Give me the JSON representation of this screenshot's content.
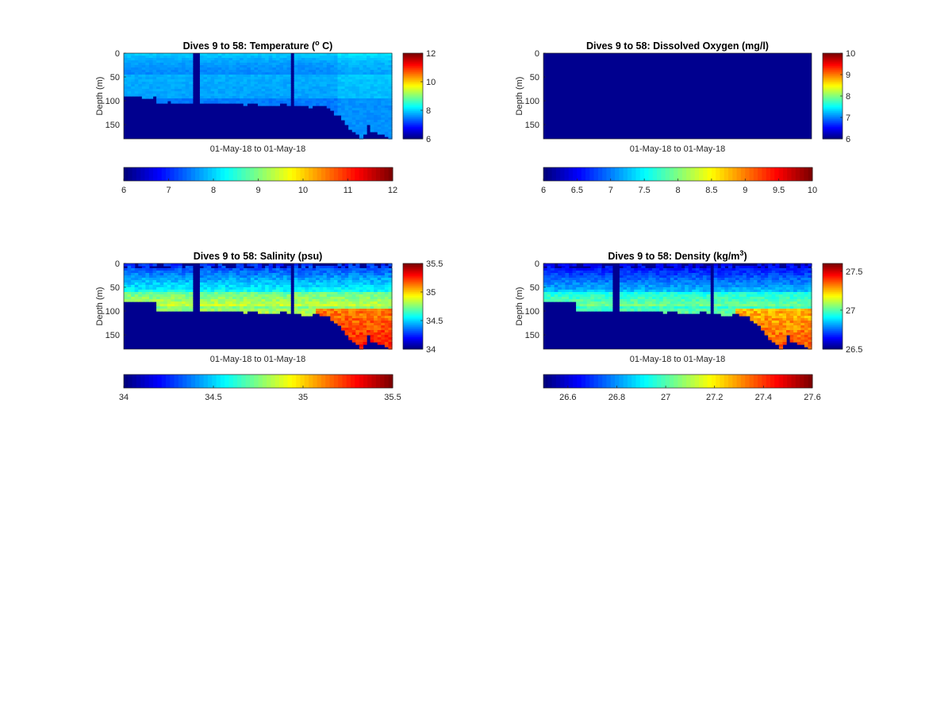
{
  "chart_data": [
    {
      "type": "heatmap",
      "id": "temperature",
      "title": "Dives 9 to 58: Temperature (",
      "title_sup": "o",
      "title_end": " C)",
      "xlabel": "01-May-18 to 01-May-18",
      "ylabel": "Depth (m)",
      "yticks": [
        0,
        50,
        100,
        150
      ],
      "ylim": [
        0,
        180
      ],
      "clim": [
        6,
        12
      ],
      "side_cbar_ticks": [
        "6",
        "8",
        "10",
        "12"
      ],
      "bottom_cbar_ticks": [
        "6",
        "7",
        "8",
        "9",
        "10",
        "11",
        "12"
      ],
      "dives": [
        9,
        58
      ],
      "gap_dives": [
        22,
        40
      ],
      "bottom_depth_m": [
        92,
        92,
        90,
        90,
        92,
        93,
        95,
        93,
        92,
        105,
        105,
        106,
        102,
        103,
        104,
        105,
        104,
        104,
        104,
        105,
        105,
        104,
        104,
        104,
        104,
        103,
        103,
        103,
        103,
        105,
        105,
        104,
        103,
        108,
        106,
        106,
        104,
        108,
        108,
        108,
        108,
        108,
        108,
        104,
        104,
        108,
        110,
        108,
        108,
        112,
        112,
        114,
        110,
        110,
        112,
        110,
        115,
        120,
        128,
        130,
        140,
        150,
        160,
        165,
        168,
        178,
        170,
        150,
        165,
        165,
        168,
        172,
        175,
        180
      ],
      "value_range_degC": [
        7.3,
        8.6
      ]
    },
    {
      "type": "heatmap",
      "id": "oxygen",
      "title": "Dives 9 to 58: Dissolved Oxygen (mg/l)",
      "xlabel": "01-May-18 to 01-May-18",
      "ylabel": "Depth (m)",
      "yticks": [
        0,
        50,
        100,
        150
      ],
      "ylim": [
        0,
        180
      ],
      "clim": [
        6,
        10
      ],
      "side_cbar_ticks": [
        "6",
        "7",
        "8",
        "9",
        "10"
      ],
      "bottom_cbar_ticks": [
        "6",
        "6.5",
        "7",
        "7.5",
        "8",
        "8.5",
        "9",
        "9.5",
        "10"
      ],
      "note_values": "all cells at colour-scale minimum"
    },
    {
      "type": "heatmap",
      "id": "salinity",
      "title": "Dives 9 to 58: Salinity (psu)",
      "xlabel": "01-May-18 to 01-May-18",
      "ylabel": "Depth (m)",
      "yticks": [
        0,
        50,
        100,
        150
      ],
      "ylim": [
        0,
        180
      ],
      "clim": [
        34,
        35.5
      ],
      "side_cbar_ticks": [
        "34",
        "34.5",
        "35",
        "35.5"
      ],
      "bottom_cbar_ticks": [
        "34",
        "34.5",
        "35",
        "35.5"
      ],
      "dives": [
        9,
        58
      ],
      "gap_dives": [
        22,
        40
      ],
      "bottom_depth_m": [
        80,
        80,
        78,
        78,
        80,
        80,
        82,
        80,
        80,
        100,
        100,
        102,
        98,
        100,
        100,
        102,
        100,
        100,
        100,
        102,
        102,
        100,
        100,
        100,
        100,
        100,
        100,
        100,
        100,
        102,
        102,
        100,
        100,
        104,
        102,
        102,
        100,
        104,
        104,
        104,
        104,
        104,
        104,
        100,
        100,
        104,
        106,
        104,
        104,
        108,
        108,
        110,
        106,
        106,
        110,
        108,
        112,
        118,
        125,
        130,
        140,
        150,
        160,
        165,
        168,
        178,
        170,
        150,
        165,
        165,
        168,
        172,
        175,
        180
      ],
      "value_range_psu": [
        34.2,
        35.3
      ]
    },
    {
      "type": "heatmap",
      "id": "density",
      "title": "Dives 9 to 58: Density (kg/m",
      "title_sup": "3",
      "title_end": ")",
      "xlabel": "01-May-18 to 01-May-18",
      "ylabel": "Depth (m)",
      "yticks": [
        0,
        50,
        100,
        150
      ],
      "ylim": [
        0,
        180
      ],
      "clim": [
        26.5,
        27.6
      ],
      "side_cbar_ticks": [
        "26.5",
        "27",
        "27.5"
      ],
      "bottom_cbar_ticks": [
        "26.6",
        "26.8",
        "27",
        "27.2",
        "27.4",
        "27.6"
      ],
      "dives": [
        9,
        58
      ],
      "gap_dives": [
        22,
        40
      ],
      "bottom_depth_m": [
        80,
        80,
        78,
        78,
        80,
        80,
        82,
        80,
        80,
        100,
        100,
        102,
        98,
        100,
        100,
        102,
        100,
        100,
        100,
        102,
        102,
        100,
        100,
        100,
        100,
        100,
        100,
        100,
        100,
        102,
        102,
        100,
        100,
        104,
        102,
        102,
        100,
        104,
        104,
        104,
        104,
        104,
        104,
        100,
        100,
        104,
        106,
        104,
        104,
        108,
        108,
        110,
        106,
        106,
        110,
        108,
        112,
        118,
        125,
        130,
        140,
        150,
        160,
        165,
        168,
        178,
        170,
        150,
        165,
        165,
        168,
        172,
        175,
        180
      ],
      "value_range_kgm3": [
        26.65,
        27.45
      ]
    }
  ],
  "colors": {
    "fill_min": "#00008f",
    "frame": "#262626",
    "colormap": "jet"
  }
}
